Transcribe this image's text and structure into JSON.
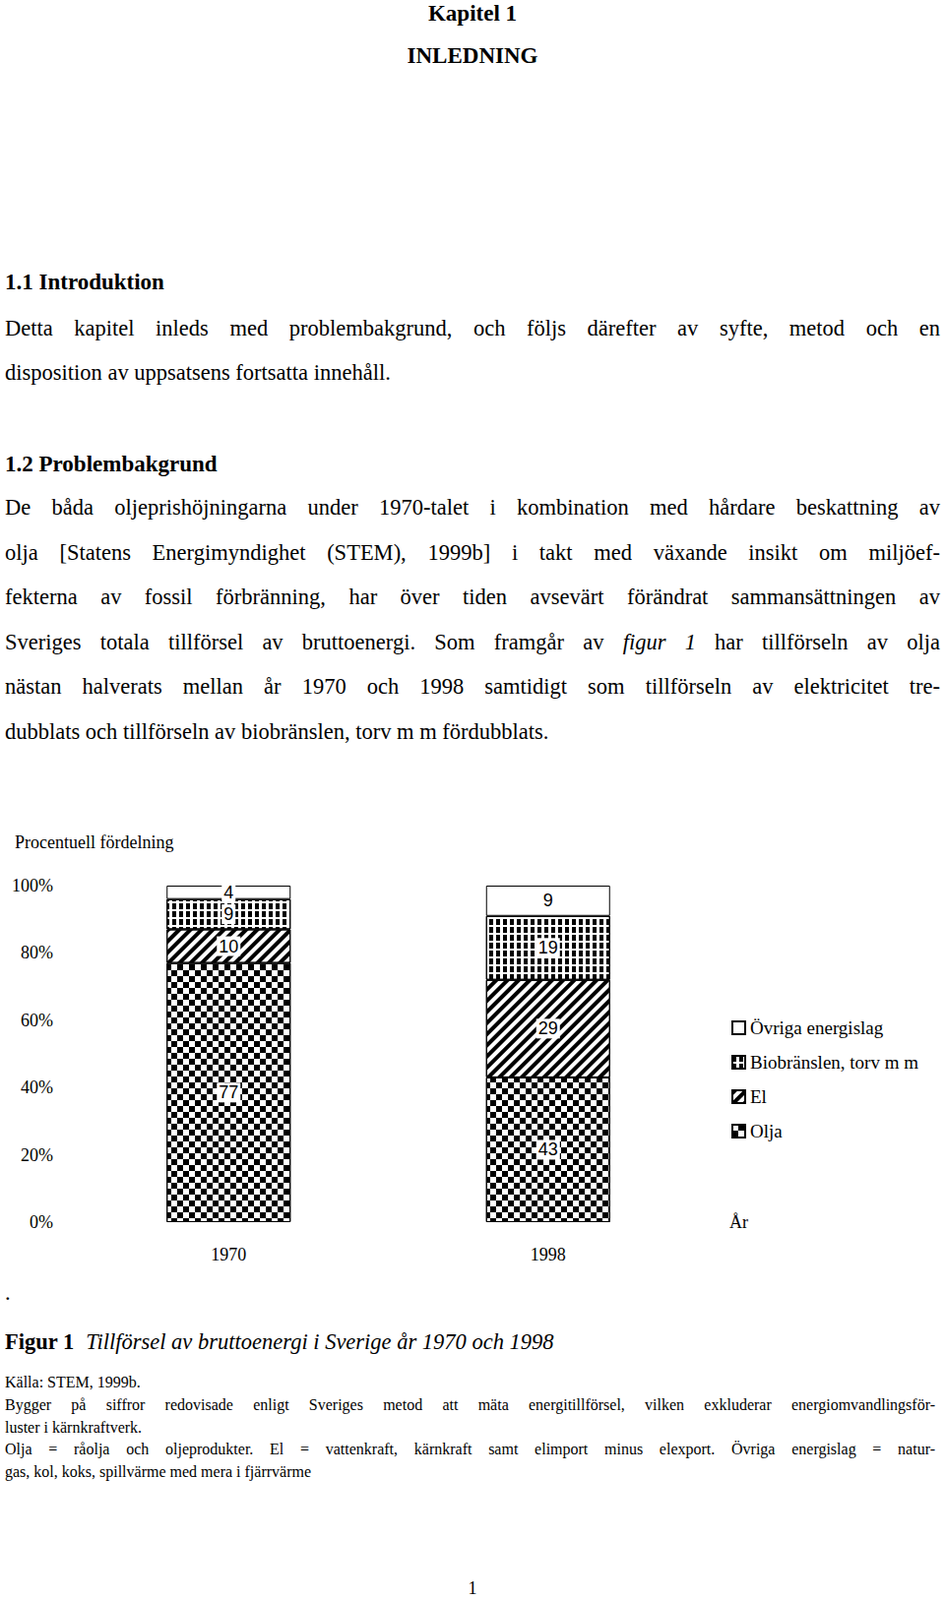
{
  "document": {
    "header": {
      "chapter": "Kapitel 1",
      "title": "INLEDNING"
    },
    "sections": [
      {
        "heading": "1.1 Introduktion",
        "lines": [
          "Detta kapitel inleds med problembakgrund, och följs därefter av syfte, metod och en",
          "disposition av uppsatsens fortsatta innehåll."
        ]
      },
      {
        "heading": "1.2 Problembakgrund",
        "lines": [
          "De båda oljeprishöjningarna under 1970-talet i kombination med hårdare beskattning av",
          "olja [Statens Energimyndighet (STEM), 1999b] i takt med växande insikt om miljöef-",
          "fekterna av fossil förbränning, har över tiden avsevärt förändrat sammansättningen av",
          [
            {
              "text": "Sveriges totala tillförsel av bruttoenergi. Som framgår av ",
              "italic": false
            },
            {
              "text": "figur 1",
              "italic": true
            },
            {
              "text": " har tillförseln av olja",
              "italic": false
            }
          ],
          "nästan halverats mellan år 1970 och 1998 samtidigt som tillförseln av elektricitet tre-",
          "dubblats och tillförseln av biobränslen, torv m m fördubblats."
        ]
      }
    ],
    "figure": {
      "dot": ".",
      "caption_label": "Figur 1",
      "caption_text": "Tillförsel av bruttoenergi i Sverige år 1970 och 1998",
      "notes": [
        [
          "Källa: STEM, 1999b."
        ],
        [
          "Bygger på siffror redovisade enligt Sveriges metod att mäta energitillförsel, vilken exkluderar energiomvandlingsför-",
          "luster i kärnkraftverk."
        ],
        [
          "Olja = råolja och oljeprodukter. El = vattenkraft, kärnkraft samt elimport minus elexport. Övriga energislag = natur-",
          "gas, kol, koks, spillvärme med mera i fjärrvärme"
        ]
      ]
    },
    "page_number": "1"
  },
  "chart_data": {
    "type": "bar",
    "y_label": "Procentuell fördelning",
    "x_label": "År",
    "categories": [
      "1970",
      "1998"
    ],
    "series": [
      {
        "name": "Olja",
        "color": "#ffffff",
        "values": [
          77,
          43
        ]
      },
      {
        "name": "El",
        "color": "#ffffff",
        "values": [
          10,
          29
        ]
      },
      {
        "name": "Biobränslen, torv m m",
        "color": "#ffffff",
        "values": [
          9,
          19
        ]
      },
      {
        "name": "Övriga energislag",
        "color": "#ffffff",
        "values": [
          4,
          9
        ]
      }
    ],
    "stacked": true,
    "data_labels": true,
    "grid": false,
    "legend": "right",
    "ylim": [
      0,
      100
    ],
    "yticks": [
      {
        "value": 0,
        "label": "0%"
      },
      {
        "value": 20,
        "label": "20%"
      },
      {
        "value": 40,
        "label": "40%"
      },
      {
        "value": 60,
        "label": "60%"
      },
      {
        "value": 80,
        "label": "80%"
      },
      {
        "value": 100,
        "label": "100%"
      }
    ]
  }
}
